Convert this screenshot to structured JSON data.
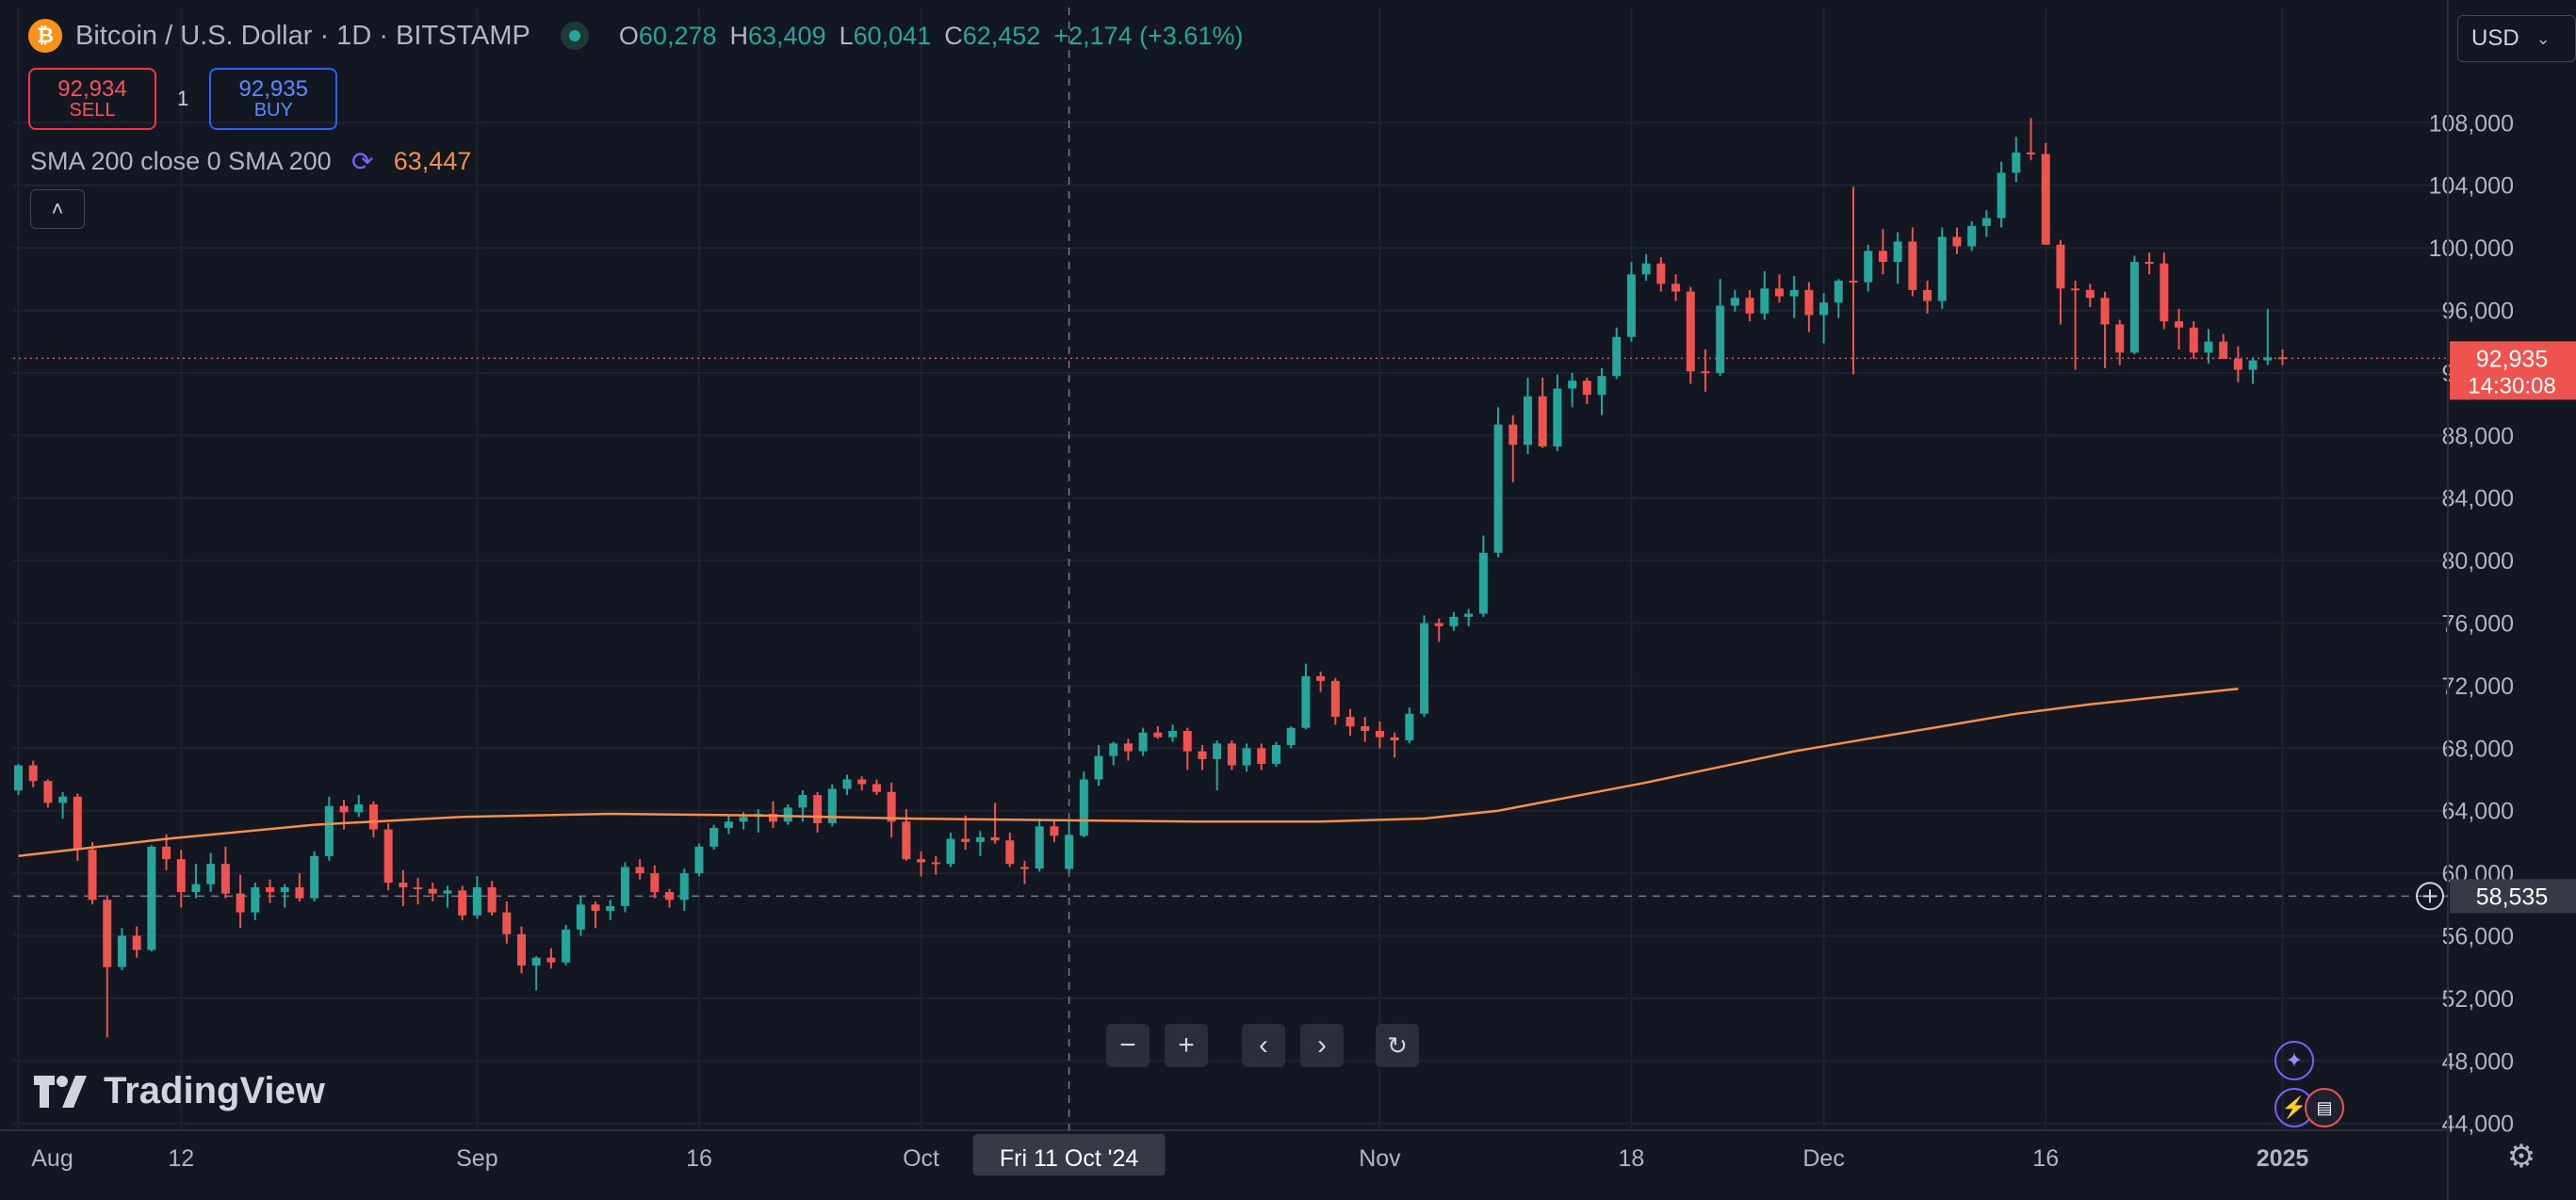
{
  "header": {
    "symbol_title": "Bitcoin / U.S. Dollar · 1D · BITSTAMP",
    "coin_glyph": "₿",
    "ohlc": [
      {
        "key": "O",
        "value": "60,278"
      },
      {
        "key": "H",
        "value": "63,409"
      },
      {
        "key": "L",
        "value": "60,041"
      },
      {
        "key": "C",
        "value": "62,452"
      }
    ],
    "change": "+2,174 (+3.61%)"
  },
  "trade": {
    "sell_price": "92,934",
    "sell_label": "SELL",
    "quantity": "1",
    "buy_price": "92,935",
    "buy_label": "BUY"
  },
  "indicator": {
    "label": "SMA 200 close 0 SMA 200",
    "value": "63,447"
  },
  "currency": "USD",
  "brand": "TradingView",
  "colors": {
    "up": "#26a69a",
    "down": "#ef5350",
    "sma": "#f68f4a",
    "background": "#131722"
  },
  "chart_data": {
    "type": "candlestick",
    "title": "Bitcoin / U.S. Dollar · 1D · BITSTAMP",
    "ylim": [
      44000,
      110000
    ],
    "y_ticks": [
      "108,000",
      "104,000",
      "100,000",
      "96,000",
      "92,000",
      "88,000",
      "84,000",
      "80,000",
      "76,000",
      "72,000",
      "68,000",
      "64,000",
      "60,000",
      "56,000",
      "52,000",
      "48,000",
      "44,000"
    ],
    "x_range_days": [
      0,
      153
    ],
    "x_ticks": [
      {
        "label": "Aug",
        "day": 0
      },
      {
        "label": "12",
        "day": 11
      },
      {
        "label": "Sep",
        "day": 31
      },
      {
        "label": "16",
        "day": 46
      },
      {
        "label": "Oct",
        "day": 61
      },
      {
        "label": "Nov",
        "day": 92
      },
      {
        "label": "18",
        "day": 109
      },
      {
        "label": "Dec",
        "day": 122
      },
      {
        "label": "16",
        "day": 137
      },
      {
        "label": "2025",
        "day": 153
      }
    ],
    "crosshair": {
      "date_label": "Fri 11 Oct '24",
      "day": 71,
      "price": 58535,
      "price_label": "58,535"
    },
    "last_price": {
      "price": 92935,
      "label": "92,935",
      "countdown": "14:30:08"
    },
    "sma_200": [
      [
        0,
        61100
      ],
      [
        10,
        62200
      ],
      [
        20,
        63100
      ],
      [
        30,
        63600
      ],
      [
        40,
        63800
      ],
      [
        50,
        63700
      ],
      [
        60,
        63500
      ],
      [
        70,
        63400
      ],
      [
        80,
        63300
      ],
      [
        88,
        63300
      ],
      [
        95,
        63500
      ],
      [
        100,
        64000
      ],
      [
        105,
        64900
      ],
      [
        110,
        65800
      ],
      [
        115,
        66800
      ],
      [
        120,
        67800
      ],
      [
        125,
        68600
      ],
      [
        130,
        69400
      ],
      [
        135,
        70200
      ],
      [
        140,
        70800
      ],
      [
        145,
        71300
      ],
      [
        150,
        71800
      ]
    ],
    "candles": [
      [
        0,
        65300,
        67000,
        65000,
        66900
      ],
      [
        1,
        66900,
        67200,
        65500,
        65900
      ],
      [
        2,
        65900,
        66000,
        64200,
        64500
      ],
      [
        3,
        64500,
        65200,
        63500,
        64900
      ],
      [
        4,
        64900,
        65100,
        60800,
        61500
      ],
      [
        5,
        61500,
        62000,
        58000,
        58300
      ],
      [
        6,
        58300,
        58600,
        49500,
        54000
      ],
      [
        7,
        54000,
        56500,
        53800,
        56000
      ],
      [
        8,
        56000,
        56600,
        54600,
        55100
      ],
      [
        9,
        55100,
        61800,
        55000,
        61700
      ],
      [
        10,
        61700,
        62500,
        60200,
        60900
      ],
      [
        11,
        60900,
        61500,
        57800,
        58800
      ],
      [
        12,
        58800,
        60600,
        58400,
        59300
      ],
      [
        13,
        59300,
        61300,
        58800,
        60600
      ],
      [
        14,
        60600,
        61700,
        58400,
        58700
      ],
      [
        15,
        58700,
        59900,
        56500,
        57500
      ],
      [
        16,
        57500,
        59400,
        57000,
        59100
      ],
      [
        17,
        59100,
        59600,
        58100,
        58800
      ],
      [
        18,
        58800,
        59300,
        57800,
        59100
      ],
      [
        19,
        59100,
        60000,
        58200,
        58400
      ],
      [
        20,
        58400,
        61400,
        58200,
        61100
      ],
      [
        21,
        61100,
        64900,
        60800,
        64300
      ],
      [
        22,
        64300,
        64700,
        62800,
        63900
      ],
      [
        23,
        63900,
        65000,
        63600,
        64400
      ],
      [
        24,
        64400,
        64600,
        62300,
        62800
      ],
      [
        25,
        62800,
        63200,
        58900,
        59400
      ],
      [
        26,
        59400,
        60200,
        57900,
        59100
      ],
      [
        27,
        59100,
        59700,
        58000,
        59000
      ],
      [
        28,
        59000,
        59400,
        58200,
        58700
      ],
      [
        29,
        58700,
        59200,
        57800,
        58900
      ],
      [
        30,
        58900,
        59200,
        57000,
        57300
      ],
      [
        31,
        57300,
        59800,
        57100,
        59100
      ],
      [
        32,
        59100,
        59500,
        57300,
        57500
      ],
      [
        33,
        57500,
        58200,
        55500,
        56100
      ],
      [
        34,
        56100,
        56600,
        53600,
        54100
      ],
      [
        35,
        54100,
        54700,
        52500,
        54600
      ],
      [
        36,
        54600,
        55200,
        53900,
        54300
      ],
      [
        37,
        54300,
        56700,
        54100,
        56400
      ],
      [
        38,
        56400,
        58500,
        56000,
        58000
      ],
      [
        39,
        58000,
        58200,
        56500,
        57600
      ],
      [
        40,
        57600,
        58300,
        57000,
        57900
      ],
      [
        41,
        57900,
        60700,
        57500,
        60400
      ],
      [
        42,
        60400,
        60900,
        59600,
        60000
      ],
      [
        43,
        60000,
        60500,
        58400,
        58800
      ],
      [
        44,
        58800,
        59000,
        57800,
        58300
      ],
      [
        45,
        58300,
        60300,
        57600,
        60000
      ],
      [
        46,
        60000,
        61900,
        59800,
        61700
      ],
      [
        47,
        61700,
        63100,
        61500,
        62900
      ],
      [
        48,
        62900,
        63700,
        62500,
        63300
      ],
      [
        49,
        63300,
        63900,
        62800,
        63600
      ],
      [
        50,
        63600,
        64100,
        62600,
        63800
      ],
      [
        51,
        63800,
        64600,
        62900,
        63300
      ],
      [
        52,
        63300,
        64400,
        63100,
        64200
      ],
      [
        53,
        64200,
        65300,
        63300,
        65000
      ],
      [
        54,
        65000,
        65200,
        62600,
        63200
      ],
      [
        55,
        63200,
        65700,
        63000,
        65400
      ],
      [
        56,
        65400,
        66300,
        65000,
        66000
      ],
      [
        57,
        66000,
        66200,
        65300,
        65700
      ],
      [
        58,
        65700,
        66000,
        65000,
        65200
      ],
      [
        59,
        65200,
        65800,
        62300,
        63300
      ],
      [
        60,
        63300,
        64100,
        60800,
        60900
      ],
      [
        61,
        60900,
        61400,
        59800,
        60700
      ],
      [
        62,
        60700,
        61100,
        59900,
        60600
      ],
      [
        63,
        60600,
        62600,
        60400,
        62200
      ],
      [
        64,
        62200,
        63700,
        61500,
        62000
      ],
      [
        65,
        62000,
        62700,
        61100,
        62300
      ],
      [
        66,
        62300,
        64500,
        61900,
        62100
      ],
      [
        67,
        62100,
        62600,
        60400,
        60600
      ],
      [
        68,
        60400,
        60800,
        59300,
        60300
      ],
      [
        69,
        60300,
        63500,
        60100,
        63000
      ],
      [
        70,
        63000,
        63400,
        62000,
        62400
      ],
      [
        71,
        60278,
        63409,
        60041,
        62452
      ],
      [
        72,
        62400,
        66500,
        62300,
        66000
      ],
      [
        73,
        66000,
        68200,
        65600,
        67500
      ],
      [
        74,
        67500,
        68400,
        66900,
        68300
      ],
      [
        75,
        68300,
        68600,
        67200,
        67800
      ],
      [
        76,
        67800,
        69300,
        67500,
        69000
      ],
      [
        77,
        69000,
        69400,
        68600,
        68700
      ],
      [
        78,
        68700,
        69500,
        68400,
        69100
      ],
      [
        79,
        69100,
        69300,
        66600,
        67800
      ],
      [
        80,
        67800,
        68200,
        66600,
        67300
      ],
      [
        81,
        67300,
        68500,
        65300,
        68300
      ],
      [
        82,
        68300,
        68500,
        66600,
        66900
      ],
      [
        83,
        66900,
        68300,
        66500,
        68000
      ],
      [
        84,
        68000,
        68300,
        66600,
        67000
      ],
      [
        85,
        67000,
        68400,
        66800,
        68200
      ],
      [
        86,
        68200,
        69400,
        68000,
        69300
      ],
      [
        87,
        69300,
        73400,
        69200,
        72600
      ],
      [
        88,
        72600,
        72900,
        71600,
        72300
      ],
      [
        89,
        72300,
        72500,
        69500,
        70000
      ],
      [
        90,
        70000,
        70500,
        68800,
        69400
      ],
      [
        91,
        69400,
        70000,
        68400,
        69100
      ],
      [
        92,
        69100,
        69700,
        68000,
        68700
      ],
      [
        93,
        68700,
        69000,
        67400,
        68500
      ],
      [
        94,
        68500,
        70600,
        68300,
        70200
      ],
      [
        95,
        70200,
        76500,
        70000,
        76000
      ],
      [
        96,
        76000,
        76300,
        74800,
        75800
      ],
      [
        97,
        75800,
        76700,
        75500,
        76400
      ],
      [
        98,
        76400,
        76900,
        75800,
        76600
      ],
      [
        99,
        76600,
        81600,
        76400,
        80500
      ],
      [
        100,
        80500,
        89800,
        80200,
        88700
      ],
      [
        101,
        88700,
        89300,
        85000,
        87400
      ],
      [
        102,
        87400,
        91700,
        86800,
        90500
      ],
      [
        103,
        90500,
        91700,
        87200,
        87300
      ],
      [
        104,
        87300,
        91900,
        87000,
        91000
      ],
      [
        105,
        91000,
        92000,
        89800,
        91500
      ],
      [
        106,
        91500,
        91700,
        90000,
        90600
      ],
      [
        107,
        90600,
        92300,
        89300,
        91800
      ],
      [
        108,
        91800,
        94900,
        91600,
        94300
      ],
      [
        109,
        94300,
        99100,
        94000,
        98300
      ],
      [
        110,
        98300,
        99600,
        97900,
        99000
      ],
      [
        111,
        99000,
        99400,
        97200,
        97700
      ],
      [
        112,
        97700,
        98300,
        96600,
        97200
      ],
      [
        113,
        97200,
        97500,
        91300,
        92100
      ],
      [
        114,
        92100,
        93500,
        90800,
        92000
      ],
      [
        115,
        92000,
        98000,
        91800,
        96300
      ],
      [
        116,
        96300,
        97300,
        95900,
        96800
      ],
      [
        117,
        96800,
        97300,
        95300,
        95800
      ],
      [
        118,
        95800,
        98500,
        95400,
        97400
      ],
      [
        119,
        97400,
        98300,
        96500,
        96900
      ],
      [
        120,
        96900,
        98200,
        95500,
        97300
      ],
      [
        121,
        97300,
        97800,
        94600,
        95700
      ],
      [
        122,
        95700,
        97100,
        93900,
        96500
      ],
      [
        123,
        96500,
        98000,
        95500,
        97900
      ],
      [
        124,
        97900,
        103900,
        91900,
        97800
      ],
      [
        125,
        97800,
        100200,
        97200,
        99800
      ],
      [
        126,
        99800,
        101200,
        98300,
        99100
      ],
      [
        127,
        99100,
        101000,
        97700,
        100400
      ],
      [
        128,
        100400,
        101300,
        96900,
        97300
      ],
      [
        129,
        97300,
        97900,
        95800,
        96600
      ],
      [
        130,
        96600,
        101300,
        96100,
        100700
      ],
      [
        131,
        100700,
        101300,
        99600,
        100100
      ],
      [
        132,
        100100,
        101700,
        99800,
        101400
      ],
      [
        133,
        101400,
        102400,
        100700,
        101900
      ],
      [
        134,
        101900,
        105500,
        101300,
        104800
      ],
      [
        135,
        104800,
        107100,
        104200,
        106100
      ],
      [
        136,
        106100,
        108300,
        105600,
        106000
      ],
      [
        137,
        106000,
        106700,
        100200,
        100200
      ],
      [
        138,
        100200,
        100500,
        95100,
        97400
      ],
      [
        139,
        97400,
        97900,
        92200,
        97300
      ],
      [
        140,
        97300,
        97700,
        96200,
        96800
      ],
      [
        141,
        96800,
        97200,
        92300,
        95100
      ],
      [
        142,
        95100,
        95400,
        92500,
        93300
      ],
      [
        143,
        93300,
        99500,
        93200,
        99100
      ],
      [
        144,
        99100,
        99700,
        98300,
        99000
      ],
      [
        145,
        99000,
        99700,
        94800,
        95300
      ],
      [
        146,
        95300,
        96100,
        93500,
        94900
      ],
      [
        147,
        94900,
        95300,
        92900,
        93300
      ],
      [
        148,
        93300,
        94800,
        92600,
        94000
      ],
      [
        149,
        94000,
        94500,
        92900,
        92900
      ],
      [
        150,
        92900,
        93700,
        91400,
        92200
      ],
      [
        151,
        92200,
        93000,
        91300,
        92800
      ],
      [
        152,
        92800,
        96100,
        92500,
        93000
      ],
      [
        153,
        93000,
        93500,
        92500,
        92935
      ]
    ]
  }
}
